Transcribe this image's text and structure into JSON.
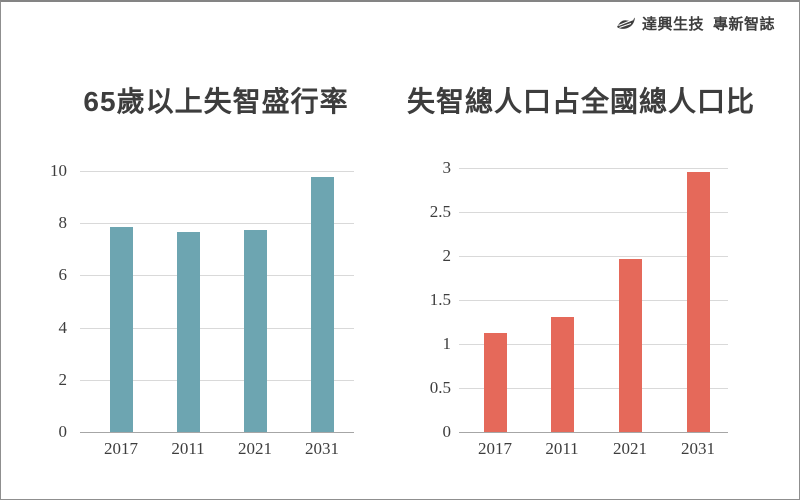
{
  "logo": {
    "company": "達興生技",
    "publication": "專新智誌",
    "color": "#3d3d3d"
  },
  "page": {
    "background": "#ffffff",
    "border_color": "#8f8f8f"
  },
  "chart_data": [
    {
      "type": "bar",
      "title": "65歲以上失智盛行率",
      "categories": [
        "2017",
        "2011",
        "2021",
        "2031"
      ],
      "values": [
        7.85,
        7.67,
        7.74,
        9.77
      ],
      "xlabel": "",
      "ylabel": "",
      "ylim": [
        0,
        10
      ],
      "yticks": [
        0,
        2,
        4,
        6,
        8,
        10
      ],
      "grid": true,
      "legend": "none",
      "bar_color": "#6da5b1",
      "grid_color": "#d9d9d9",
      "axis_color": "#a6a6a6",
      "text_color": "#3d3d3d"
    },
    {
      "type": "bar",
      "title": "失智總人口占全國總人口比",
      "categories": [
        "2017",
        "2011",
        "2021",
        "2031"
      ],
      "values": [
        1.13,
        1.31,
        1.97,
        2.95
      ],
      "xlabel": "",
      "ylabel": "",
      "ylim": [
        0,
        3
      ],
      "yticks": [
        0,
        0.5,
        1,
        1.5,
        2,
        2.5,
        3
      ],
      "grid": true,
      "legend": "none",
      "bar_color": "#e5695a",
      "grid_color": "#d9d9d9",
      "axis_color": "#a6a6a6",
      "text_color": "#3d3d3d"
    }
  ]
}
